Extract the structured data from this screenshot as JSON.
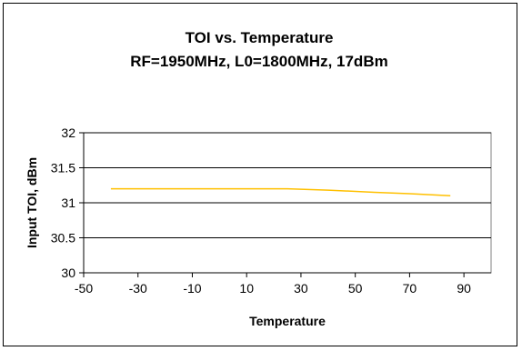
{
  "chart_data": {
    "type": "line",
    "title": "TOI vs. Temperature",
    "subtitle": "RF=1950MHz, L0=1800MHz, 17dBm",
    "xlabel": "Temperature",
    "ylabel": "Input TOI, dBm",
    "xlim": [
      -50,
      100
    ],
    "ylim": [
      30,
      32
    ],
    "xticks": [
      -50,
      -30,
      -10,
      10,
      30,
      50,
      70,
      90
    ],
    "yticks": [
      30,
      30.5,
      31,
      31.5,
      32
    ],
    "grid": "horizontal",
    "legend": "none",
    "series": [
      {
        "color": "#FFC000",
        "x": [
          -40,
          -20,
          0,
          25,
          40,
          57,
          70,
          85
        ],
        "y": [
          31.2,
          31.2,
          31.2,
          31.2,
          31.18,
          31.15,
          31.13,
          31.1
        ]
      }
    ]
  }
}
